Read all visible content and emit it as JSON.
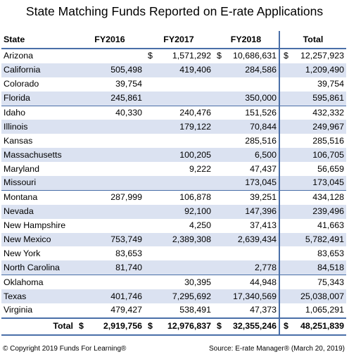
{
  "title": "State Matching Funds Reported on E-rate Applications",
  "columns": [
    "State",
    "FY2016",
    "FY2017",
    "FY2018",
    "Total"
  ],
  "rows": [
    {
      "state": "Arizona",
      "fy2016": "",
      "fy2017": "1,571,292",
      "fy2018": "10,686,631",
      "total": "12,257,923",
      "dollar": true
    },
    {
      "state": "California",
      "fy2016": "505,498",
      "fy2017": "419,406",
      "fy2018": "284,586",
      "total": "1,209,490"
    },
    {
      "state": "Colorado",
      "fy2016": "39,754",
      "fy2017": "",
      "fy2018": "",
      "total": "39,754"
    },
    {
      "state": "Florida",
      "fy2016": "245,861",
      "fy2017": "",
      "fy2018": "350,000",
      "total": "595,861"
    },
    {
      "state": "Idaho",
      "fy2016": "40,330",
      "fy2017": "240,476",
      "fy2018": "151,526",
      "total": "432,332"
    },
    {
      "state": "Illinois",
      "fy2016": "",
      "fy2017": "179,122",
      "fy2018": "70,844",
      "total": "249,967"
    },
    {
      "state": "Kansas",
      "fy2016": "",
      "fy2017": "",
      "fy2018": "285,516",
      "total": "285,516"
    },
    {
      "state": "Massachusetts",
      "fy2016": "",
      "fy2017": "100,205",
      "fy2018": "6,500",
      "total": "106,705"
    },
    {
      "state": "Maryland",
      "fy2016": "",
      "fy2017": "9,222",
      "fy2018": "47,437",
      "total": "56,659"
    },
    {
      "state": "Missouri",
      "fy2016": "",
      "fy2017": "",
      "fy2018": "173,045",
      "total": "173,045"
    },
    {
      "state": "Montana",
      "fy2016": "287,999",
      "fy2017": "106,878",
      "fy2018": "39,251",
      "total": "434,128"
    },
    {
      "state": "Nevada",
      "fy2016": "",
      "fy2017": "92,100",
      "fy2018": "147,396",
      "total": "239,496"
    },
    {
      "state": "New Hampshire",
      "fy2016": "",
      "fy2017": "4,250",
      "fy2018": "37,413",
      "total": "41,663"
    },
    {
      "state": "New Mexico",
      "fy2016": "753,749",
      "fy2017": "2,389,308",
      "fy2018": "2,639,434",
      "total": "5,782,491"
    },
    {
      "state": "New York",
      "fy2016": "83,653",
      "fy2017": "",
      "fy2018": "",
      "total": "83,653"
    },
    {
      "state": "North Carolina",
      "fy2016": "81,740",
      "fy2017": "",
      "fy2018": "2,778",
      "total": "84,518"
    },
    {
      "state": "Oklahoma",
      "fy2016": "",
      "fy2017": "30,395",
      "fy2018": "44,948",
      "total": "75,343"
    },
    {
      "state": "Texas",
      "fy2016": "401,746",
      "fy2017": "7,295,692",
      "fy2018": "17,340,569",
      "total": "25,038,007"
    },
    {
      "state": "Virginia",
      "fy2016": "479,427",
      "fy2017": "538,491",
      "fy2018": "47,373",
      "total": "1,065,291"
    }
  ],
  "totals": {
    "label": "Total",
    "currency": "$",
    "fy2016": "2,919,756",
    "fy2017": "12,976,837",
    "fy2018": "32,355,246",
    "total": "48,251,839"
  },
  "footer": {
    "copyright": "© Copyright 2019 Funds For Learning®",
    "source": "Source: E-rate Manager® (March 20, 2019)"
  }
}
